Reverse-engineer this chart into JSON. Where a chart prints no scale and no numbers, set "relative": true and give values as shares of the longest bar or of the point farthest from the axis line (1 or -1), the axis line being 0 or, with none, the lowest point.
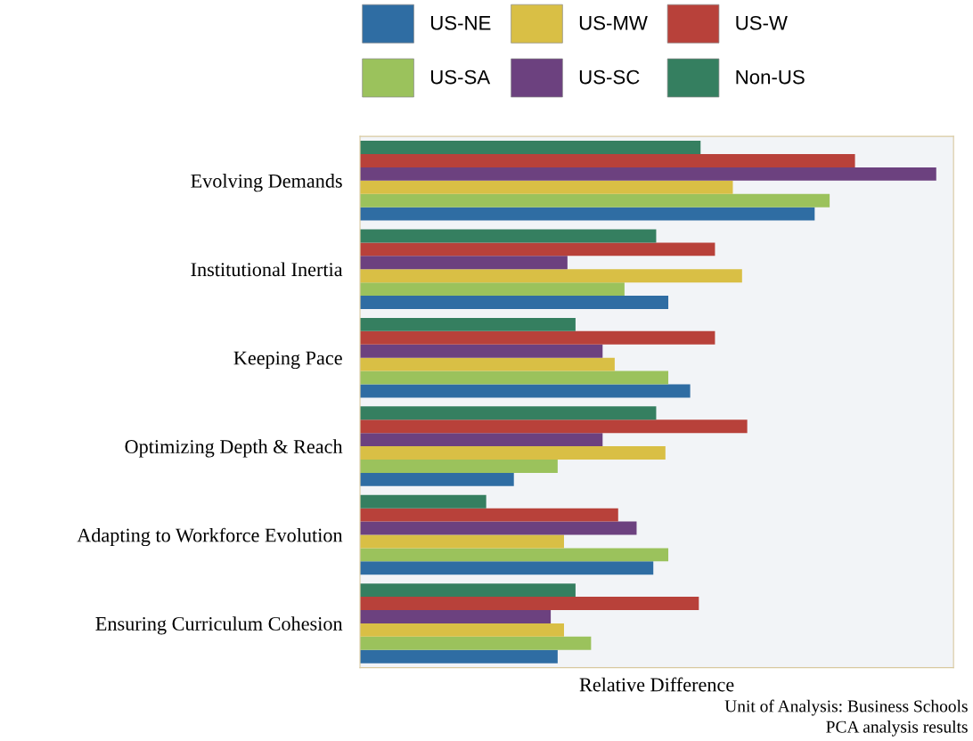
{
  "chart_data": {
    "type": "bar",
    "orientation": "horizontal",
    "relative": true,
    "xlabel": "Relative Difference",
    "categories": [
      "Evolving Demands",
      "Institutional Inertia",
      "Keeping Pace",
      "Optimizing Depth & Reach",
      "Adapting to Workforce Evolution",
      "Ensuring Curriculum Cohesion"
    ],
    "series": [
      {
        "name": "US-NE",
        "color": "#2f6da3",
        "values": [
          0.789,
          0.535,
          0.573,
          0.267,
          0.509,
          0.343
        ]
      },
      {
        "name": "US-SA",
        "color": "#9bc25c",
        "values": [
          0.815,
          0.459,
          0.535,
          0.343,
          0.535,
          0.401
        ]
      },
      {
        "name": "US-MW",
        "color": "#d9bf45",
        "values": [
          0.647,
          0.663,
          0.442,
          0.53,
          0.354,
          0.354
        ]
      },
      {
        "name": "US-SC",
        "color": "#6c417f",
        "values": [
          1.0,
          0.36,
          0.421,
          0.421,
          0.48,
          0.331
        ]
      },
      {
        "name": "US-W",
        "color": "#b8413a",
        "values": [
          0.859,
          0.616,
          0.616,
          0.672,
          0.448,
          0.588
        ]
      },
      {
        "name": "Non-US",
        "color": "#357f60",
        "values": [
          0.591,
          0.514,
          0.374,
          0.514,
          0.219,
          0.374
        ]
      }
    ],
    "legend": "top",
    "grid": false,
    "annotations": [
      "Unit of Analysis: Business Schools",
      "PCA analysis results"
    ]
  }
}
